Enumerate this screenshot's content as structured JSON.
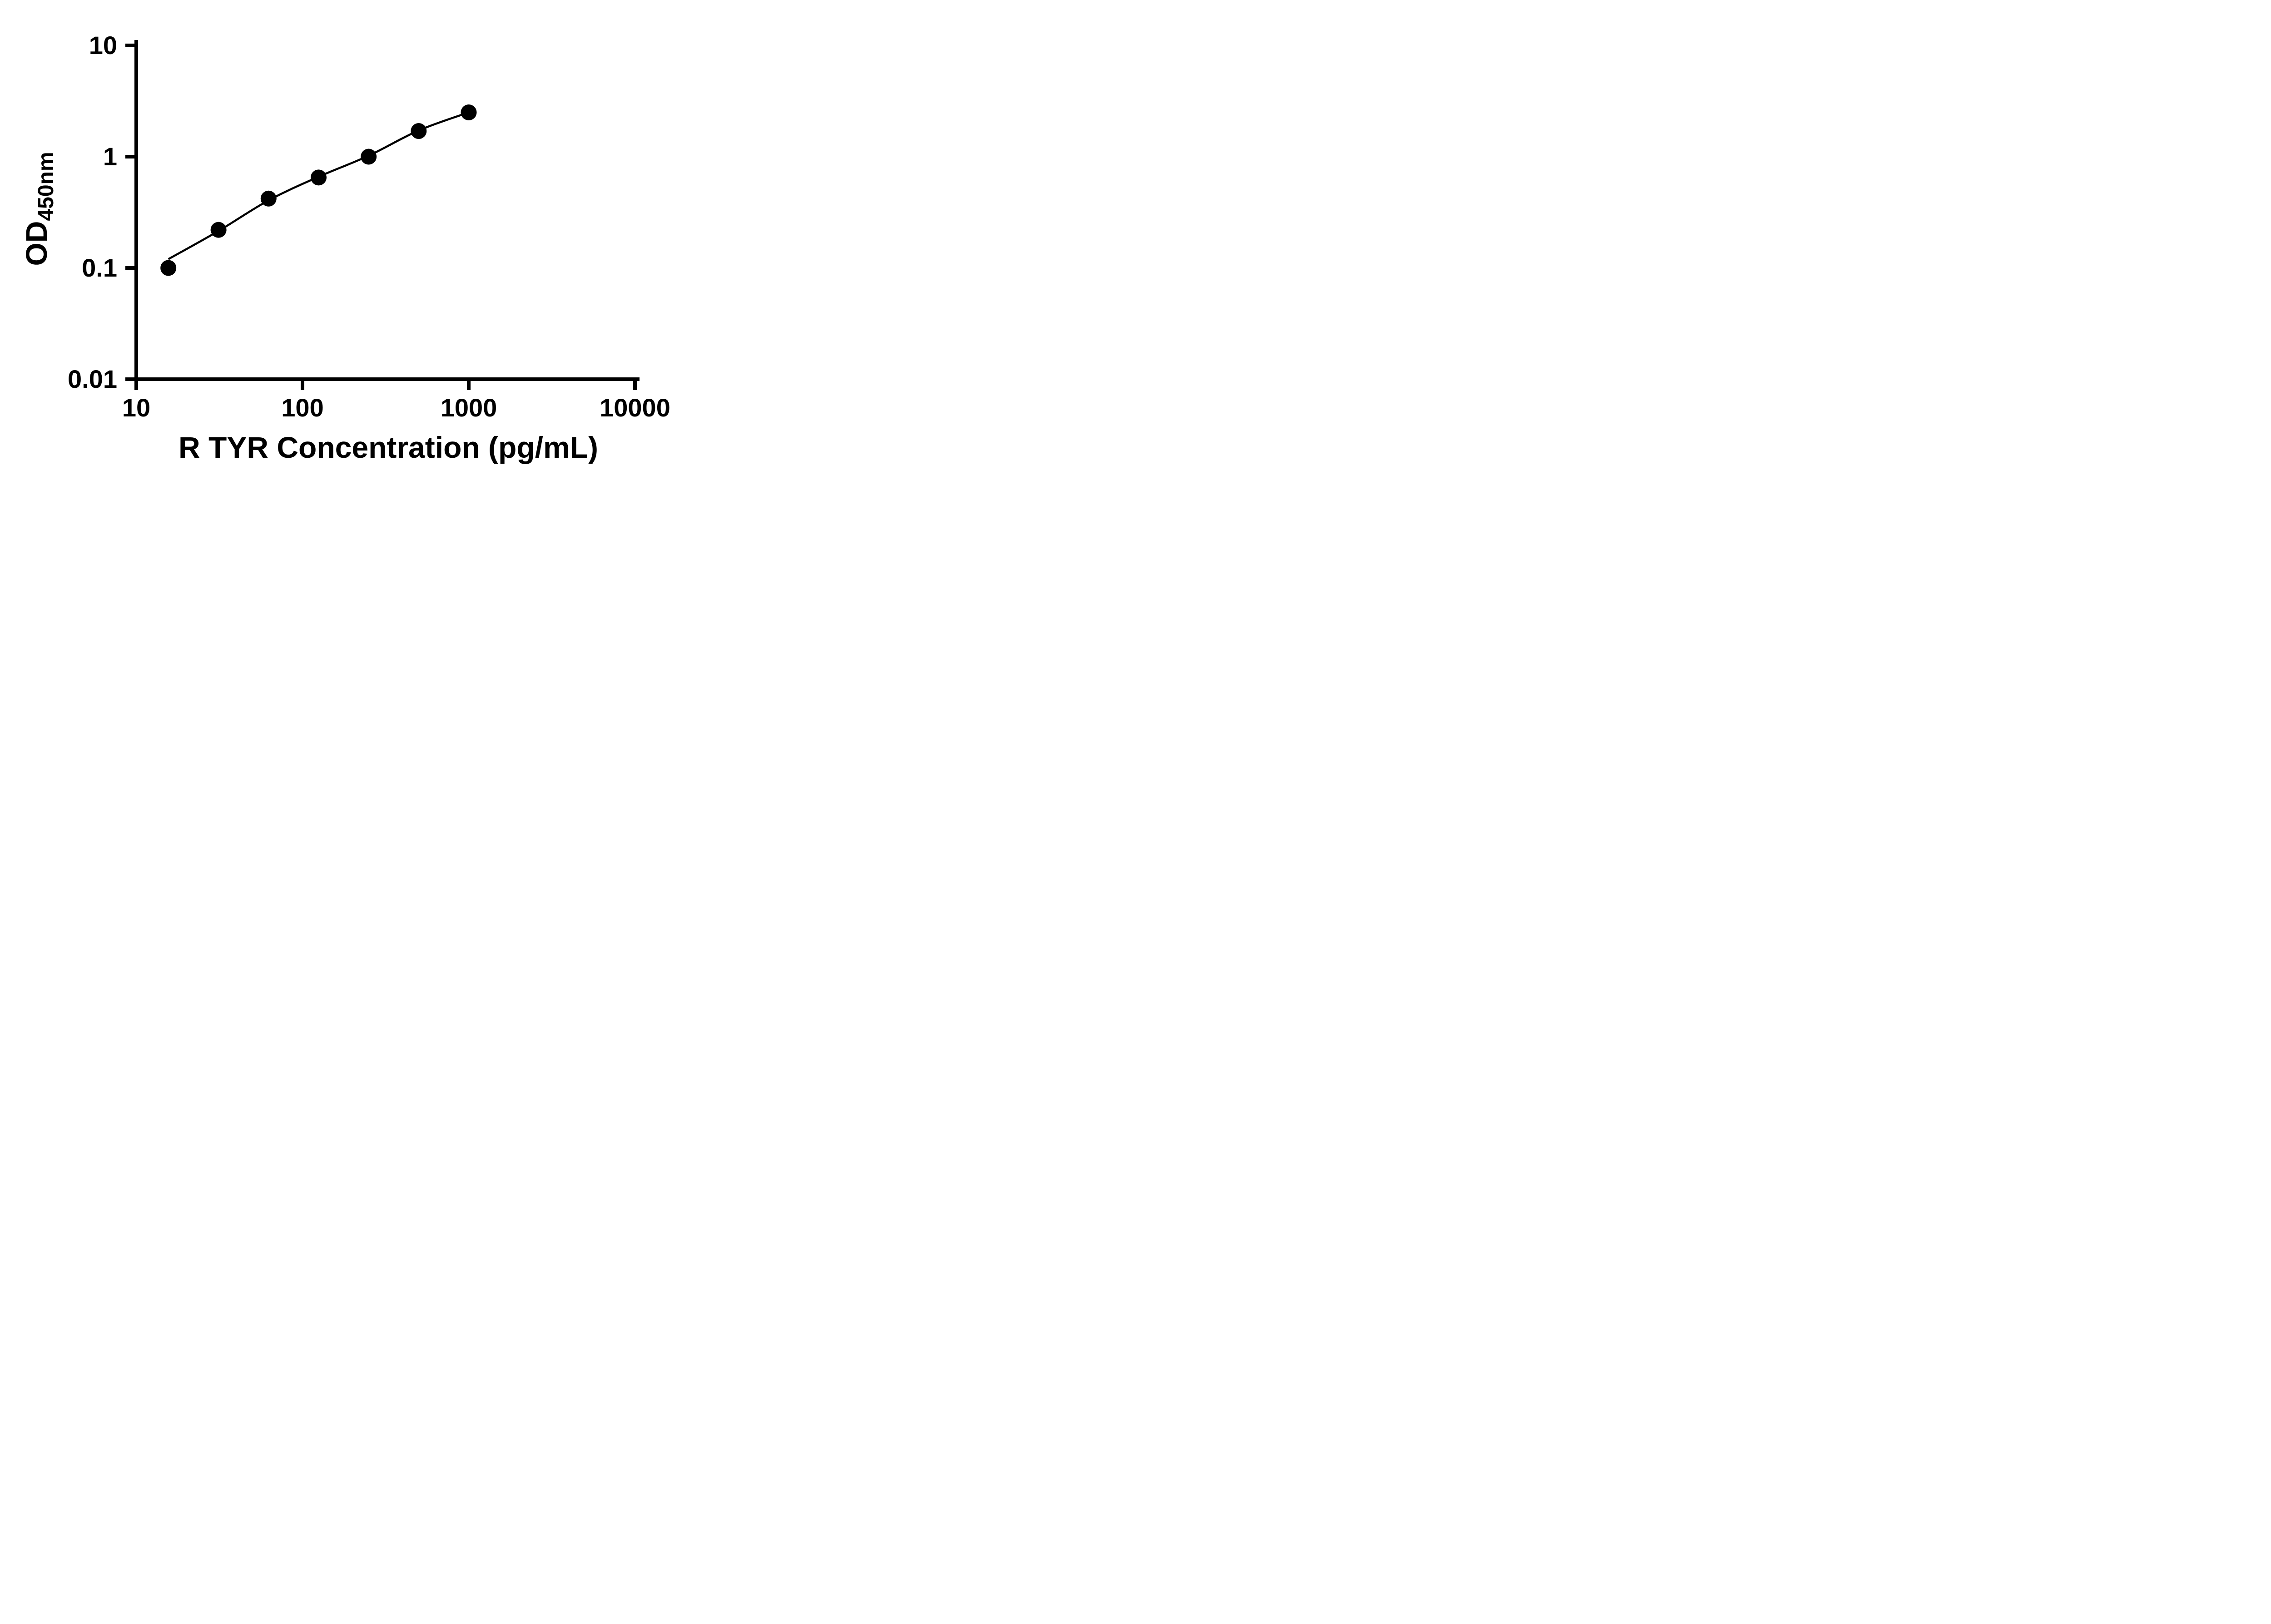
{
  "chart_data": {
    "type": "scatter",
    "title": "",
    "xlabel": "R TYR Concentration (pg/mL)",
    "ylabel_main": "OD",
    "ylabel_sub": "450nm",
    "x_scale": "log10",
    "y_scale": "log10",
    "xlim": [
      10,
      10000
    ],
    "ylim": [
      0.01,
      10
    ],
    "x_ticks": [
      10,
      100,
      1000,
      10000
    ],
    "x_tick_labels": [
      "10",
      "100",
      "1000",
      "10000"
    ],
    "y_ticks": [
      0.01,
      0.1,
      1,
      10
    ],
    "y_tick_labels": [
      "0.01",
      "0.1",
      "1",
      "10"
    ],
    "grid": false,
    "legend": false,
    "axis_color": "#000000",
    "marker_color": "#000000",
    "line_color": "#000000",
    "points": [
      {
        "x": 15.6,
        "y": 0.1
      },
      {
        "x": 31.25,
        "y": 0.22
      },
      {
        "x": 62.5,
        "y": 0.42
      },
      {
        "x": 125,
        "y": 0.65
      },
      {
        "x": 250,
        "y": 1.0
      },
      {
        "x": 500,
        "y": 1.7
      },
      {
        "x": 1000,
        "y": 2.5
      }
    ],
    "fit_curve": [
      {
        "x": 15.6,
        "y": 0.12
      },
      {
        "x": 31.25,
        "y": 0.215
      },
      {
        "x": 62.5,
        "y": 0.405
      },
      {
        "x": 125,
        "y": 0.66
      },
      {
        "x": 250,
        "y": 1.02
      },
      {
        "x": 500,
        "y": 1.72
      },
      {
        "x": 1000,
        "y": 2.5
      }
    ]
  }
}
